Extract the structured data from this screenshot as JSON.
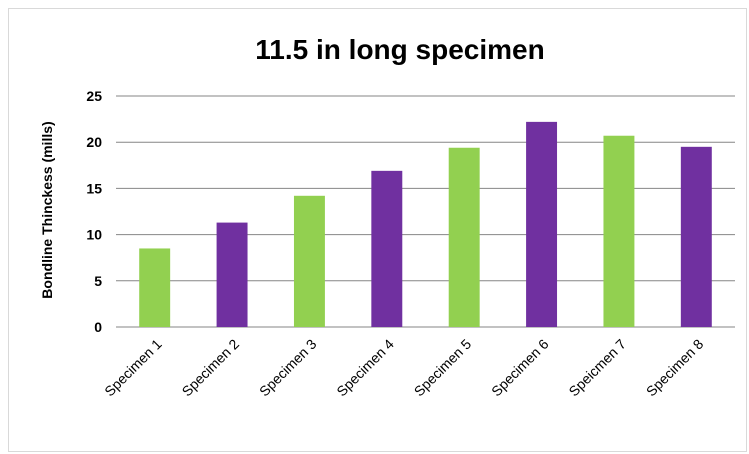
{
  "chart_data": {
    "type": "bar",
    "title": "11.5 in long specimen",
    "xlabel": "",
    "ylabel": "Bondline Thinckess (mills)",
    "ylim": [
      0,
      25
    ],
    "yticks": [
      "0",
      "5",
      "10",
      "15",
      "20",
      "25"
    ],
    "grid": true,
    "legend": "none",
    "categories": [
      "Specimen 1",
      "Specimen 2",
      "Specimen 3",
      "Specimen 4",
      "Specimen 5",
      "Specimen 6",
      "Speicmen 7",
      "Specimen 8"
    ],
    "values": [
      8.5,
      11.3,
      14.2,
      16.9,
      19.4,
      22.2,
      20.7,
      19.5
    ],
    "bar_colors": [
      "#92d050",
      "#7030a0",
      "#92d050",
      "#7030a0",
      "#92d050",
      "#7030a0",
      "#92d050",
      "#7030a0"
    ],
    "gridline_color": "#868686"
  }
}
